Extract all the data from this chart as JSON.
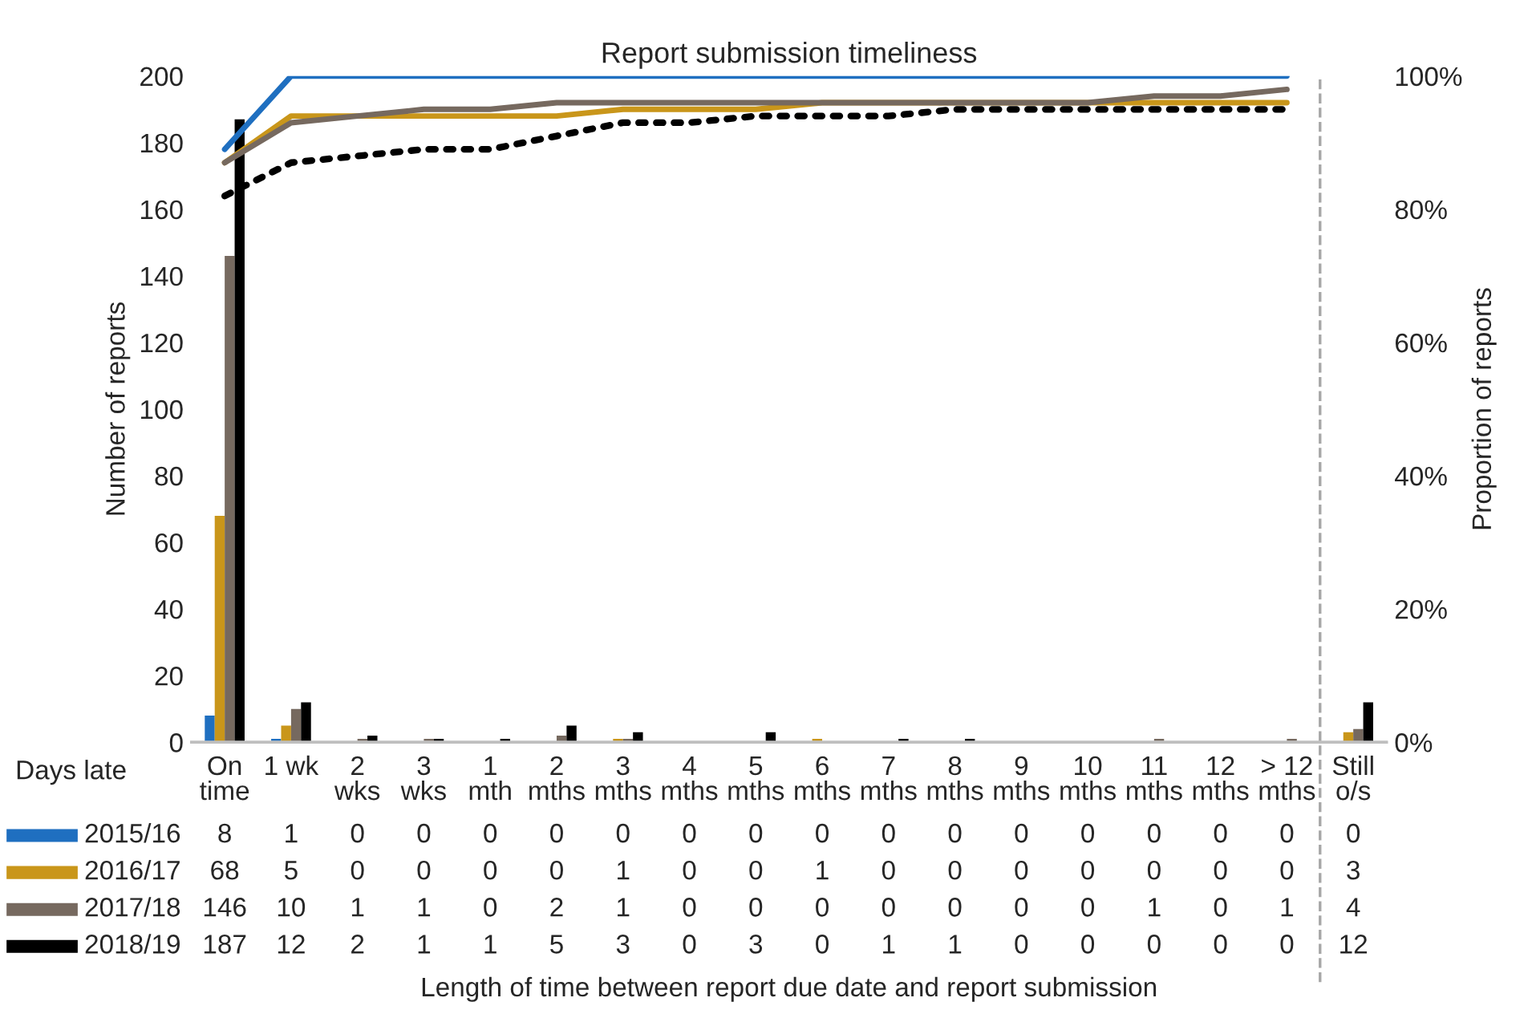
{
  "chart_data": {
    "type": "bar",
    "title": "Report submission timeliness",
    "ylabel": "Number of reports",
    "y2label": "Proportion of reports",
    "annotations": [
      "Days late",
      "Length of time between report due date and report submission"
    ],
    "categories": [
      "On\ntime",
      "1 wk",
      "2\nwks",
      "3\nwks",
      "1\nmth",
      "2\nmths",
      "3\nmths",
      "4\nmths",
      "5\nmths",
      "6\nmths",
      "7\nmths",
      "8\nmths",
      "9\nmths",
      "10\nmths",
      "11\nmths",
      "12\nmths",
      "> 12\nmths",
      "Still\no/s"
    ],
    "series": [
      {
        "name": "2015/16",
        "color": "#1f6fc0",
        "values": [
          8,
          1,
          0,
          0,
          0,
          0,
          0,
          0,
          0,
          0,
          0,
          0,
          0,
          0,
          0,
          0,
          0,
          0
        ],
        "value_labels": [
          "8",
          "1",
          "0",
          "0",
          "0",
          "0",
          "0",
          "0",
          "0",
          "0",
          "0",
          "0",
          "0",
          "0",
          "0",
          "0",
          "0",
          "0"
        ]
      },
      {
        "name": "2016/17",
        "color": "#c9961a",
        "values": [
          68,
          5,
          0,
          0,
          0,
          0,
          1,
          0,
          0,
          1,
          0,
          0,
          0,
          0,
          0,
          0,
          0,
          3
        ],
        "value_labels": [
          "68",
          "5",
          "0",
          "0",
          "0",
          "0",
          "1",
          "0",
          "0",
          "1",
          "0",
          "0",
          "0",
          "0",
          "0",
          "0",
          "0",
          "3"
        ]
      },
      {
        "name": "2017/18",
        "color": "#76695f",
        "values": [
          146,
          10,
          1,
          1,
          0,
          2,
          1,
          0,
          0,
          0,
          0,
          0,
          0,
          0,
          1,
          0,
          1,
          4
        ],
        "value_labels": [
          "146",
          "10",
          "1",
          "1",
          "0",
          "2",
          "1",
          "0",
          "0",
          "0",
          "0",
          "0",
          "0",
          "0",
          "1",
          "0",
          "1",
          "4"
        ]
      },
      {
        "name": "2018/19",
        "color": "#000000",
        "values": [
          187,
          12,
          2,
          1,
          1,
          5,
          3,
          0,
          3,
          0,
          1,
          1,
          0,
          0,
          0,
          0,
          0,
          12
        ],
        "value_labels": [
          "187",
          "12",
          "2",
          "1",
          "1",
          "5",
          "3",
          "0",
          "3",
          "0",
          "1",
          "1",
          "0",
          "0",
          "0",
          "0",
          "0",
          "12"
        ]
      },
      {
        "type": "line",
        "axis": "y2",
        "color": "#1f6fc0",
        "line_style": "solid",
        "values": [
          89,
          100,
          100,
          100,
          100,
          100,
          100,
          100,
          100,
          100,
          100,
          100,
          100,
          100,
          100,
          100,
          100,
          null
        ]
      },
      {
        "type": "line",
        "axis": "y2",
        "color": "#c9961a",
        "line_style": "solid",
        "values": [
          87,
          94,
          94,
          94,
          94,
          94,
          95,
          95,
          95,
          96,
          96,
          96,
          96,
          96,
          96,
          96,
          96,
          null
        ]
      },
      {
        "type": "line",
        "axis": "y2",
        "color": "#76695f",
        "line_style": "solid",
        "values": [
          87,
          93,
          94,
          95,
          95,
          96,
          96,
          96,
          96,
          96,
          96,
          96,
          96,
          96,
          97,
          97,
          98,
          null
        ]
      },
      {
        "type": "line",
        "axis": "y2",
        "color": "#000000",
        "line_style": "dotted",
        "values": [
          82,
          87,
          88,
          89,
          89,
          91,
          93,
          93,
          94,
          94,
          94,
          95,
          95,
          95,
          95,
          95,
          95,
          null
        ]
      }
    ],
    "ylim": [
      0,
      200
    ],
    "yticks": [
      0,
      20,
      40,
      60,
      80,
      100,
      120,
      140,
      160,
      180,
      200
    ],
    "y2lim": [
      0,
      100
    ],
    "y2ticks": [
      {
        "value": 0,
        "label": "0%"
      },
      {
        "value": 20,
        "label": "20%"
      },
      {
        "value": 40,
        "label": "40%"
      },
      {
        "value": 60,
        "label": "60%"
      },
      {
        "value": 80,
        "label": "80%"
      },
      {
        "value": 100,
        "label": "100%"
      }
    ],
    "grid": false,
    "legend": "bottom left"
  }
}
